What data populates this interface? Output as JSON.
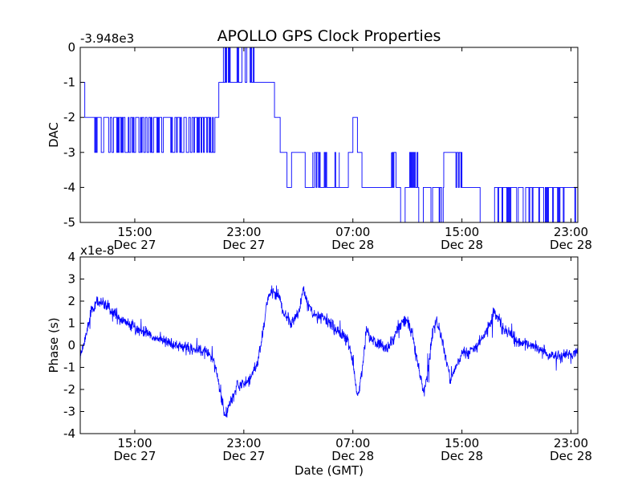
{
  "figure": {
    "title": "APOLLO GPS Clock Properties",
    "line_color": "#0000ff"
  },
  "chart_data": [
    {
      "type": "line",
      "ylabel": "DAC",
      "xlabel": "",
      "offset_label": "-3.948e3",
      "x_axis": {
        "range": [
          "Dec 27 11:00",
          "Dec 28 23:30"
        ],
        "ticks": [
          {
            "time": "Dec 27 15:00",
            "label": "15:00",
            "sublabel": "Dec 27"
          },
          {
            "time": "Dec 27 23:00",
            "label": "23:00",
            "sublabel": "Dec 27"
          },
          {
            "time": "Dec 28 07:00",
            "label": "07:00",
            "sublabel": "Dec 28"
          },
          {
            "time": "Dec 28 15:00",
            "label": "15:00",
            "sublabel": "Dec 28"
          },
          {
            "time": "Dec 28 23:00",
            "label": "23:00",
            "sublabel": "Dec 28"
          }
        ]
      },
      "y_axis": {
        "range": [
          -5,
          0
        ],
        "ticks": [
          {
            "value": 0,
            "label": "0"
          },
          {
            "value": -1,
            "label": "-1"
          },
          {
            "value": -2,
            "label": "-2"
          },
          {
            "value": -3,
            "label": "-3"
          },
          {
            "value": -4,
            "label": "-4"
          },
          {
            "value": -5,
            "label": "-5"
          }
        ]
      },
      "series": [
        {
          "color": "#0000ff",
          "segments": [
            {
              "start": "Dec 27 11:00",
              "end": "Dec 27 11:20",
              "level": -1,
              "alt": -1,
              "flicker": 0
            },
            {
              "start": "Dec 27 11:20",
              "end": "Dec 27 12:00",
              "level": -2,
              "alt": -2,
              "flicker": 0
            },
            {
              "start": "Dec 27 12:00",
              "end": "Dec 27 21:00",
              "level": -2,
              "alt": -3,
              "flicker": 0.35
            },
            {
              "start": "Dec 27 21:00",
              "end": "Dec 27 21:10",
              "level": -2,
              "alt": -2,
              "flicker": 0
            },
            {
              "start": "Dec 27 21:10",
              "end": "Dec 27 21:30",
              "level": -1,
              "alt": -1,
              "flicker": 0
            },
            {
              "start": "Dec 27 21:30",
              "end": "Dec 27 22:00",
              "level": 0,
              "alt": -1,
              "flicker": 0.5
            },
            {
              "start": "Dec 27 22:00",
              "end": "Dec 27 22:30",
              "level": -1,
              "alt": -1,
              "flicker": 0
            },
            {
              "start": "Dec 27 22:30",
              "end": "Dec 27 23:45",
              "level": 0,
              "alt": -1,
              "flicker": 0.45
            },
            {
              "start": "Dec 27 23:45",
              "end": "Dec 28 01:15",
              "level": -1,
              "alt": -1,
              "flicker": 0
            },
            {
              "start": "Dec 28 01:15",
              "end": "Dec 28 01:40",
              "level": -2,
              "alt": -2,
              "flicker": 0
            },
            {
              "start": "Dec 28 01:40",
              "end": "Dec 28 02:10",
              "level": -3,
              "alt": -3,
              "flicker": 0
            },
            {
              "start": "Dec 28 02:10",
              "end": "Dec 28 02:30",
              "level": -4,
              "alt": -4,
              "flicker": 0
            },
            {
              "start": "Dec 28 02:30",
              "end": "Dec 28 03:30",
              "level": -3,
              "alt": -3,
              "flicker": 0
            },
            {
              "start": "Dec 28 03:30",
              "end": "Dec 28 04:00",
              "level": -4,
              "alt": -4,
              "flicker": 0
            },
            {
              "start": "Dec 28 04:00",
              "end": "Dec 28 06:00",
              "level": -3,
              "alt": -4,
              "flicker": 0.5
            },
            {
              "start": "Dec 28 06:00",
              "end": "Dec 28 06:40",
              "level": -4,
              "alt": -4,
              "flicker": 0
            },
            {
              "start": "Dec 28 06:40",
              "end": "Dec 28 07:00",
              "level": -3,
              "alt": -3,
              "flicker": 0
            },
            {
              "start": "Dec 28 07:00",
              "end": "Dec 28 07:20",
              "level": -2,
              "alt": -2,
              "flicker": 0
            },
            {
              "start": "Dec 28 07:20",
              "end": "Dec 28 07:40",
              "level": -3,
              "alt": -3,
              "flicker": 0
            },
            {
              "start": "Dec 28 07:40",
              "end": "Dec 28 09:50",
              "level": -4,
              "alt": -4,
              "flicker": 0
            },
            {
              "start": "Dec 28 09:50",
              "end": "Dec 28 10:10",
              "level": -3,
              "alt": -4,
              "flicker": 0.5
            },
            {
              "start": "Dec 28 10:10",
              "end": "Dec 28 10:30",
              "level": -4,
              "alt": -4,
              "flicker": 0
            },
            {
              "start": "Dec 28 10:30",
              "end": "Dec 28 10:50",
              "level": -5,
              "alt": -5,
              "flicker": 0
            },
            {
              "start": "Dec 28 10:50",
              "end": "Dec 28 11:10",
              "level": -4,
              "alt": -4,
              "flicker": 0
            },
            {
              "start": "Dec 28 11:10",
              "end": "Dec 28 11:50",
              "level": -4,
              "alt": -3,
              "flicker": 0.4
            },
            {
              "start": "Dec 28 11:50",
              "end": "Dec 28 12:10",
              "level": -5,
              "alt": -5,
              "flicker": 0
            },
            {
              "start": "Dec 28 12:10",
              "end": "Dec 28 12:40",
              "level": -4,
              "alt": -4,
              "flicker": 0
            },
            {
              "start": "Dec 28 12:40",
              "end": "Dec 28 13:40",
              "level": -4,
              "alt": -5,
              "flicker": 0.3
            },
            {
              "start": "Dec 28 13:40",
              "end": "Dec 28 14:30",
              "level": -3,
              "alt": -3,
              "flicker": 0
            },
            {
              "start": "Dec 28 14:30",
              "end": "Dec 28 15:00",
              "level": -3,
              "alt": -4,
              "flicker": 0.5
            },
            {
              "start": "Dec 28 15:00",
              "end": "Dec 28 16:20",
              "level": -4,
              "alt": -4,
              "flicker": 0
            },
            {
              "start": "Dec 28 16:20",
              "end": "Dec 28 17:20",
              "level": -5,
              "alt": -5,
              "flicker": 0
            },
            {
              "start": "Dec 28 17:20",
              "end": "Dec 28 18:50",
              "level": -4,
              "alt": -5,
              "flicker": 0.35
            },
            {
              "start": "Dec 28 18:50",
              "end": "Dec 28 22:30",
              "level": -4,
              "alt": -5,
              "flicker": 0.25
            },
            {
              "start": "Dec 28 22:30",
              "end": "Dec 28 23:30",
              "level": -4,
              "alt": -5,
              "flicker": 0.2
            }
          ]
        }
      ]
    },
    {
      "type": "line",
      "ylabel": "Phase (s)",
      "xlabel": "Date (GMT)",
      "offset_label": "x1e-8",
      "x_axis": {
        "range": [
          "Dec 27 11:00",
          "Dec 28 23:30"
        ],
        "ticks": [
          {
            "time": "Dec 27 15:00",
            "label": "15:00",
            "sublabel": "Dec 27"
          },
          {
            "time": "Dec 27 23:00",
            "label": "23:00",
            "sublabel": "Dec 27"
          },
          {
            "time": "Dec 28 07:00",
            "label": "07:00",
            "sublabel": "Dec 28"
          },
          {
            "time": "Dec 28 15:00",
            "label": "15:00",
            "sublabel": "Dec 28"
          },
          {
            "time": "Dec 28 23:00",
            "label": "23:00",
            "sublabel": "Dec 28"
          }
        ]
      },
      "y_axis": {
        "range": [
          -4,
          4
        ],
        "ticks": [
          {
            "value": 4,
            "label": "4"
          },
          {
            "value": 3,
            "label": "3"
          },
          {
            "value": 2,
            "label": "2"
          },
          {
            "value": 1,
            "label": "1"
          },
          {
            "value": 0,
            "label": "0"
          },
          {
            "value": -1,
            "label": "-1"
          },
          {
            "value": -2,
            "label": "-2"
          },
          {
            "value": -3,
            "label": "-3"
          },
          {
            "value": -4,
            "label": "-4"
          }
        ]
      },
      "series": [
        {
          "color": "#0000ff",
          "noise": 0.35,
          "trend": [
            [
              "Dec 27 11:00",
              -0.6
            ],
            [
              "Dec 27 11:20",
              0.3
            ],
            [
              "Dec 27 11:50",
              1.6
            ],
            [
              "Dec 27 12:20",
              2.0
            ],
            [
              "Dec 27 13:00",
              1.7
            ],
            [
              "Dec 27 14:00",
              1.2
            ],
            [
              "Dec 27 15:00",
              0.8
            ],
            [
              "Dec 27 16:00",
              0.5
            ],
            [
              "Dec 27 17:00",
              0.2
            ],
            [
              "Dec 27 18:00",
              0.0
            ],
            [
              "Dec 27 19:00",
              -0.2
            ],
            [
              "Dec 27 20:00",
              -0.2
            ],
            [
              "Dec 27 20:40",
              -0.5
            ],
            [
              "Dec 27 21:00",
              -1.2
            ],
            [
              "Dec 27 21:20",
              -2.3
            ],
            [
              "Dec 27 21:40",
              -3.2
            ],
            [
              "Dec 27 22:00",
              -2.6
            ],
            [
              "Dec 27 22:30",
              -1.8
            ],
            [
              "Dec 27 23:00",
              -1.8
            ],
            [
              "Dec 27 23:30",
              -1.5
            ],
            [
              "Dec 28 00:00",
              -0.8
            ],
            [
              "Dec 28 00:20",
              0.3
            ],
            [
              "Dec 28 00:40",
              1.8
            ],
            [
              "Dec 28 01:00",
              2.4
            ],
            [
              "Dec 28 01:30",
              2.3
            ],
            [
              "Dec 28 02:00",
              1.4
            ],
            [
              "Dec 28 02:30",
              1.0
            ],
            [
              "Dec 28 03:00",
              1.4
            ],
            [
              "Dec 28 03:20",
              2.5
            ],
            [
              "Dec 28 03:40",
              2.0
            ],
            [
              "Dec 28 04:00",
              1.4
            ],
            [
              "Dec 28 05:00",
              1.2
            ],
            [
              "Dec 28 06:00",
              0.6
            ],
            [
              "Dec 28 06:40",
              0.2
            ],
            [
              "Dec 28 07:00",
              -0.8
            ],
            [
              "Dec 28 07:20",
              -2.4
            ],
            [
              "Dec 28 07:40",
              -1.2
            ],
            [
              "Dec 28 08:00",
              0.8
            ],
            [
              "Dec 28 08:20",
              0.3
            ],
            [
              "Dec 28 09:00",
              0.0
            ],
            [
              "Dec 28 09:30",
              -0.2
            ],
            [
              "Dec 28 10:00",
              0.4
            ],
            [
              "Dec 28 10:30",
              1.0
            ],
            [
              "Dec 28 11:00",
              1.1
            ],
            [
              "Dec 28 11:20",
              0.6
            ],
            [
              "Dec 28 11:50",
              -1.0
            ],
            [
              "Dec 28 12:10",
              -2.2
            ],
            [
              "Dec 28 12:30",
              -1.3
            ],
            [
              "Dec 28 12:50",
              0.6
            ],
            [
              "Dec 28 13:10",
              1.1
            ],
            [
              "Dec 28 13:30",
              0.4
            ],
            [
              "Dec 28 13:50",
              -0.6
            ],
            [
              "Dec 28 14:10",
              -1.6
            ],
            [
              "Dec 28 14:30",
              -1.0
            ],
            [
              "Dec 28 15:00",
              -0.4
            ],
            [
              "Dec 28 15:30",
              -0.3
            ],
            [
              "Dec 28 16:00",
              -0.1
            ],
            [
              "Dec 28 16:30",
              0.3
            ],
            [
              "Dec 28 17:00",
              0.8
            ],
            [
              "Dec 28 17:20",
              1.6
            ],
            [
              "Dec 28 17:40",
              1.3
            ],
            [
              "Dec 28 18:00",
              0.8
            ],
            [
              "Dec 28 19:00",
              0.2
            ],
            [
              "Dec 28 20:00",
              0.0
            ],
            [
              "Dec 28 21:00",
              -0.3
            ],
            [
              "Dec 28 22:00",
              -0.5
            ],
            [
              "Dec 28 23:00",
              -0.4
            ],
            [
              "Dec 28 23:30",
              -0.3
            ]
          ]
        }
      ]
    }
  ]
}
